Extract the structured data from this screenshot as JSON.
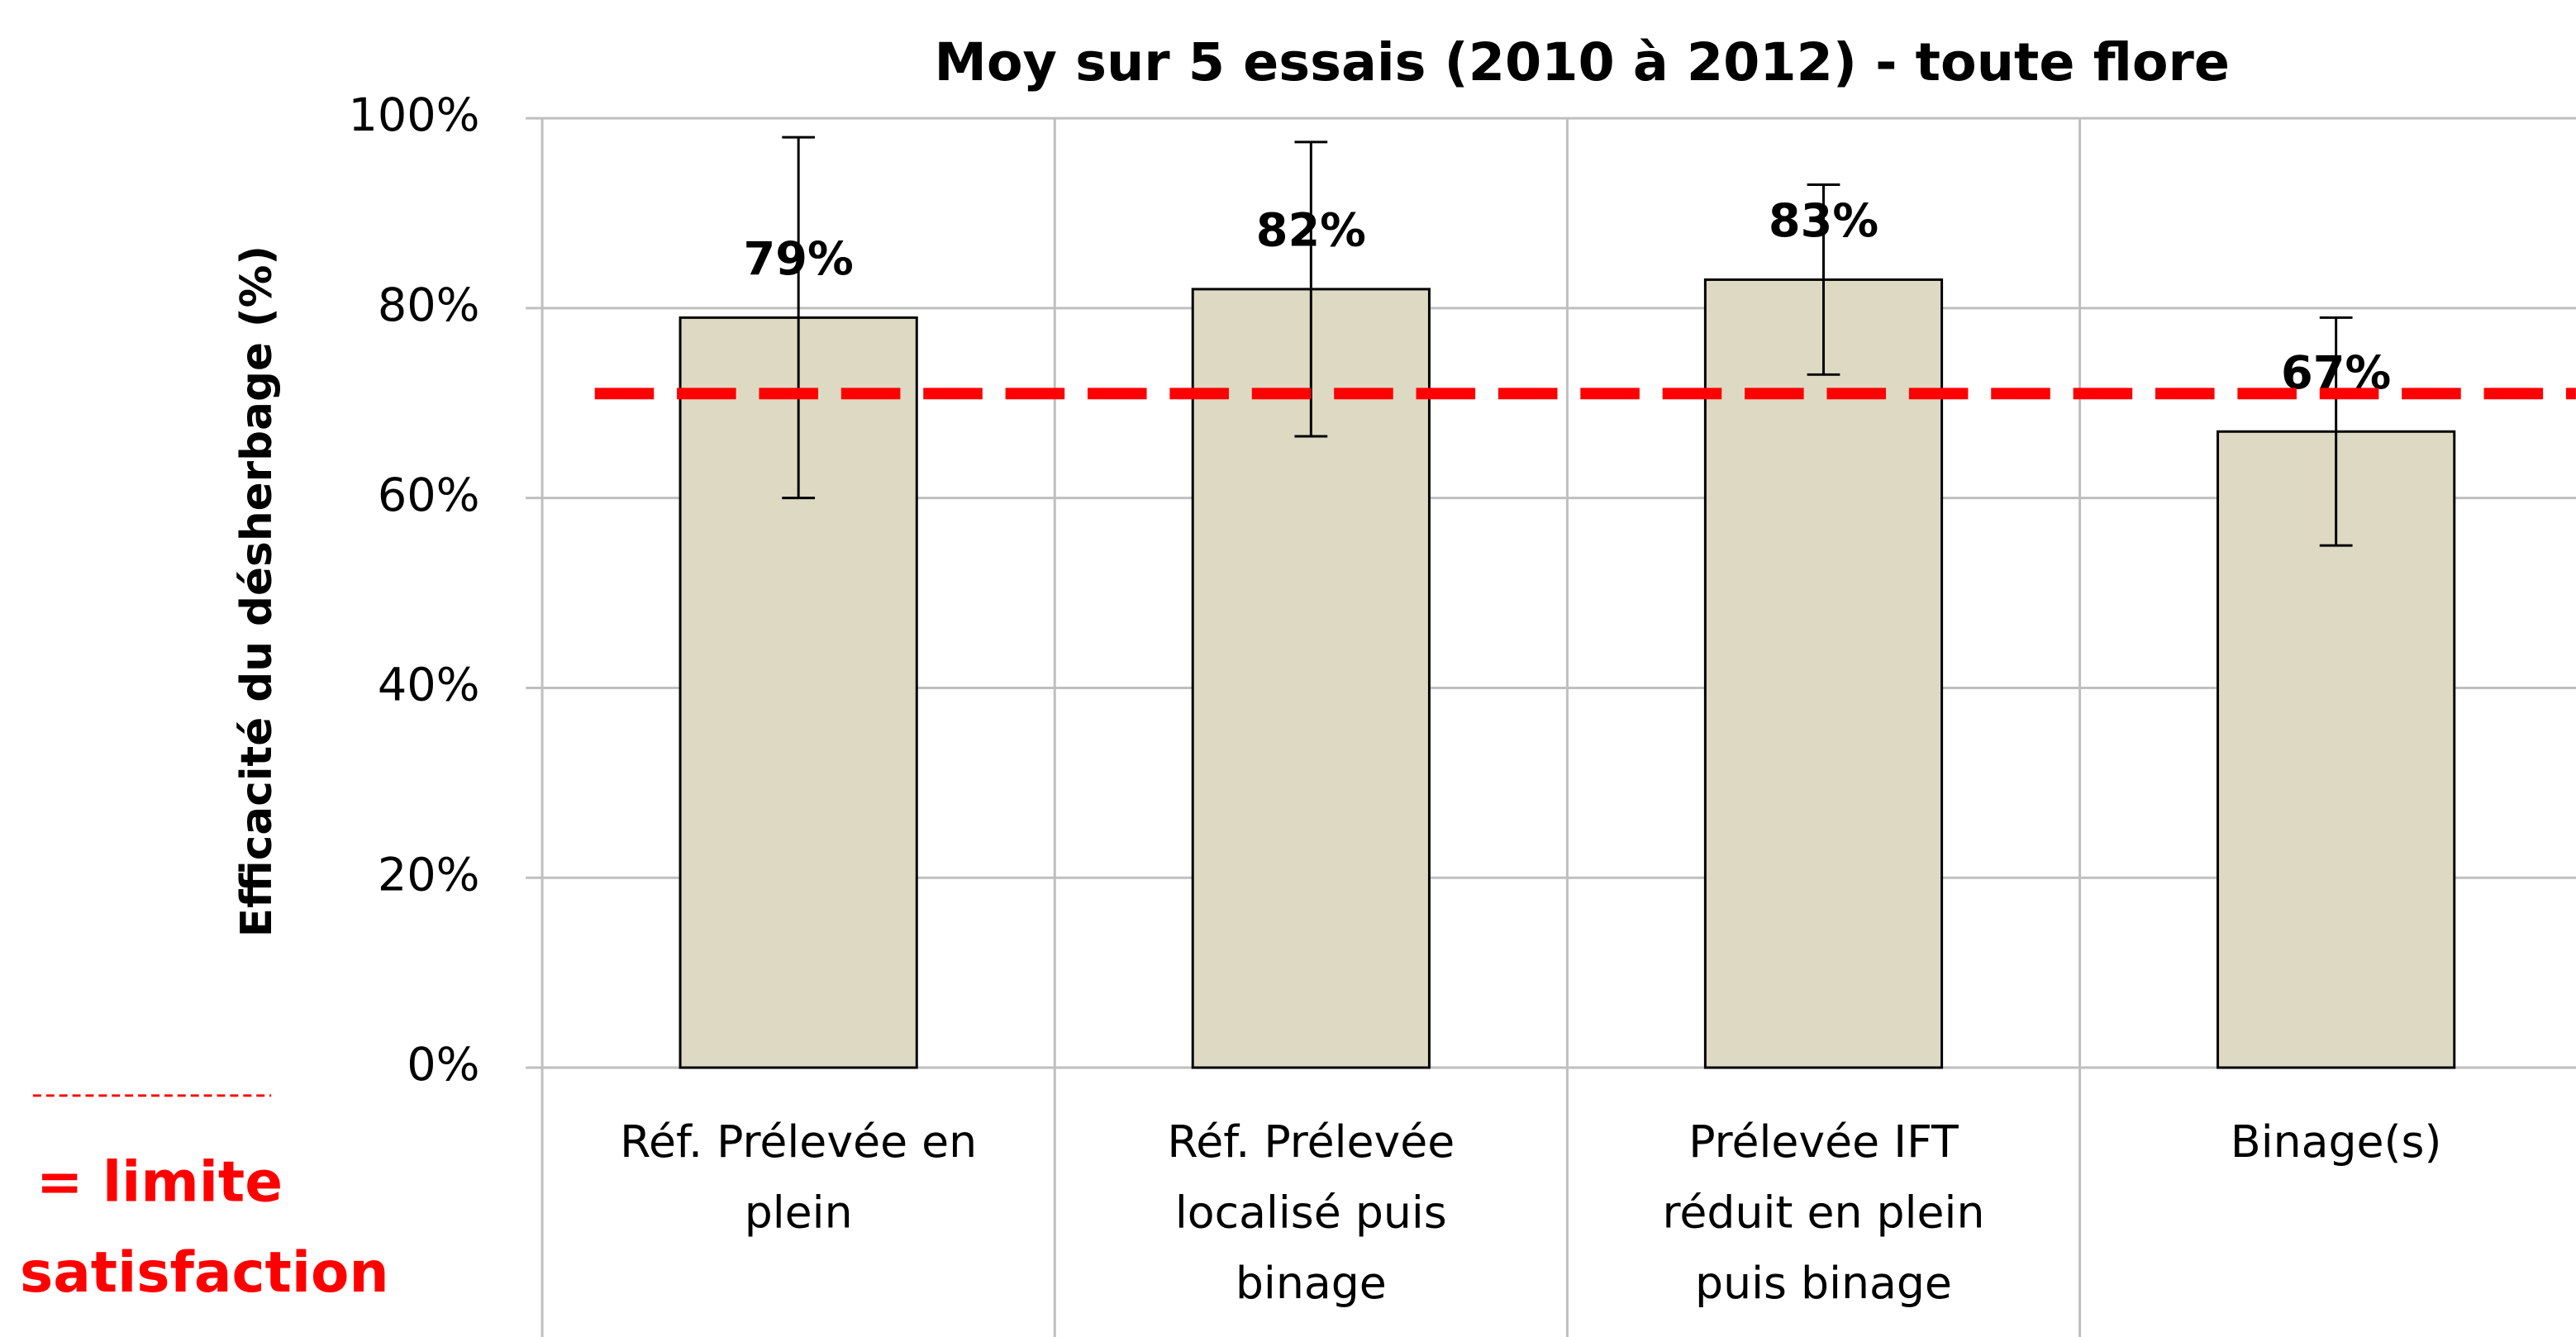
{
  "chart_data": {
    "type": "bar",
    "title": "Moy sur 5 essais (2010 à 2012)  -  toute flore",
    "ylabel": "Efficacité du désherbage (%)",
    "categories": [
      [
        "Réf. Prélevée en",
        "plein"
      ],
      [
        "Réf. Prélevée",
        "localisé puis",
        "binage"
      ],
      [
        "Prélevée IFT",
        "réduit en plein",
        "puis binage"
      ],
      [
        "Binage(s)"
      ]
    ],
    "values": [
      79,
      82,
      83,
      67
    ],
    "value_labels": [
      "79%",
      "82%",
      "83%",
      "67%"
    ],
    "errors": [
      19,
      15.5,
      10,
      12
    ],
    "color": "#ddd9c3",
    "threshold": 71,
    "threshold_color": "#ff0000",
    "legend_text": [
      "= limite",
      "satisfaction"
    ],
    "ylim": [
      0,
      100
    ],
    "yticks": [
      {
        "value": 0,
        "label": "0%"
      },
      {
        "value": 20,
        "label": "20%"
      },
      {
        "value": 40,
        "label": "40%"
      },
      {
        "value": 60,
        "label": "60%"
      },
      {
        "value": 80,
        "label": "80%"
      },
      {
        "value": 100,
        "label": "100%"
      }
    ],
    "grid": true
  }
}
